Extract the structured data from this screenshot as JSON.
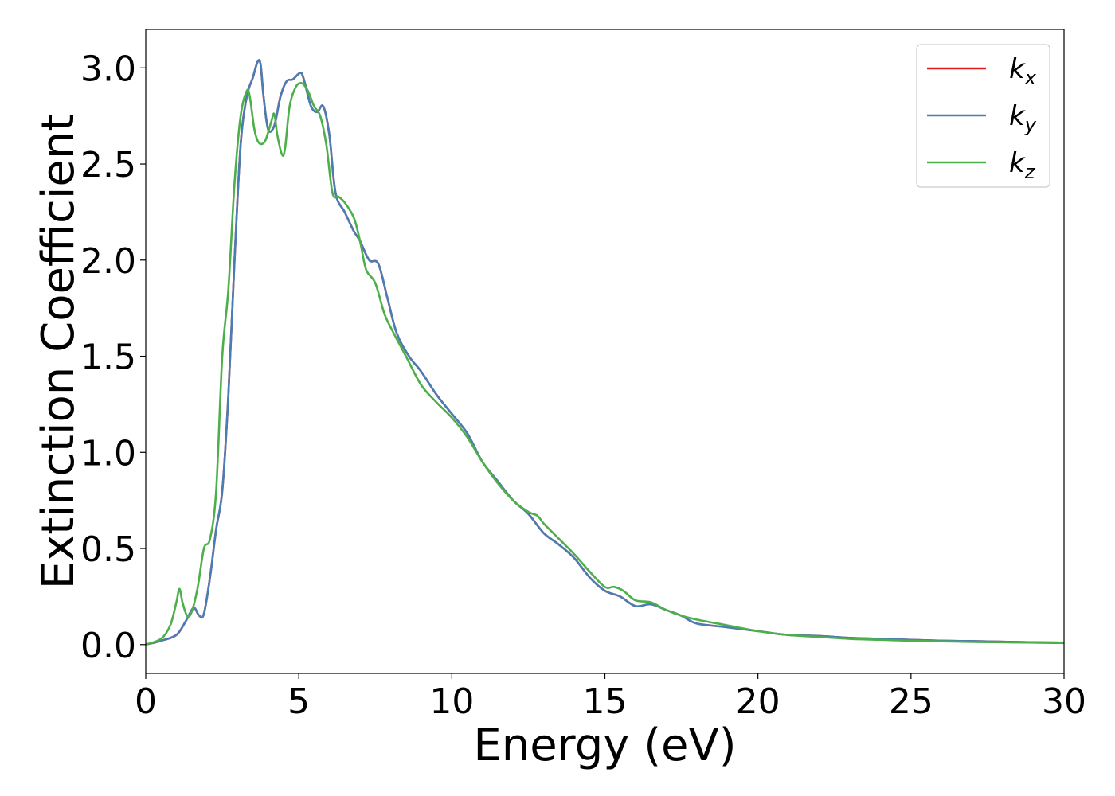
{
  "chart_data": {
    "type": "line",
    "title": "",
    "xlabel": "Energy (eV)",
    "ylabel": "Extinction Coefficient",
    "xlim": [
      0,
      30
    ],
    "ylim": [
      -0.15,
      3.2
    ],
    "xticks": [
      0,
      5,
      10,
      15,
      20,
      25,
      30
    ],
    "xtick_labels": [
      "0",
      "5",
      "10",
      "15",
      "20",
      "25",
      "30"
    ],
    "yticks": [
      0.0,
      0.5,
      1.0,
      1.5,
      2.0,
      2.5,
      3.0
    ],
    "ytick_labels": [
      "0.0",
      "0.5",
      "1.0",
      "1.5",
      "2.0",
      "2.5",
      "3.0"
    ],
    "grid": false,
    "legend_position": "top-right",
    "series": [
      {
        "name": "k_x",
        "label_base": "k",
        "label_sub": "x",
        "color": "#e41a1c",
        "x": [
          0,
          0.5,
          1.0,
          1.3,
          1.5,
          1.6,
          1.75,
          1.9,
          2.1,
          2.3,
          2.5,
          2.7,
          2.9,
          3.1,
          3.3,
          3.5,
          3.65,
          3.75,
          3.85,
          4.0,
          4.2,
          4.4,
          4.6,
          4.8,
          5.0,
          5.1,
          5.2,
          5.4,
          5.6,
          5.8,
          6.0,
          6.2,
          6.5,
          6.8,
          7.0,
          7.3,
          7.6,
          7.9,
          8.2,
          8.6,
          9.0,
          9.5,
          10.0,
          10.5,
          11.0,
          11.5,
          12.0,
          12.5,
          13.0,
          13.5,
          14.0,
          14.5,
          15.0,
          15.5,
          16.0,
          16.5,
          17.0,
          17.5,
          18.0,
          19.0,
          20.0,
          21.0,
          22.0,
          23.0,
          24.0,
          25.0,
          26.0,
          27.0,
          28.0,
          29.0,
          30.0
        ],
        "y": [
          0.0,
          0.02,
          0.05,
          0.12,
          0.18,
          0.19,
          0.15,
          0.16,
          0.35,
          0.6,
          0.8,
          1.3,
          2.0,
          2.6,
          2.85,
          2.95,
          3.03,
          3.02,
          2.85,
          2.68,
          2.7,
          2.85,
          2.93,
          2.94,
          2.97,
          2.97,
          2.92,
          2.8,
          2.77,
          2.8,
          2.65,
          2.35,
          2.25,
          2.15,
          2.1,
          2.0,
          1.98,
          1.8,
          1.62,
          1.5,
          1.42,
          1.3,
          1.2,
          1.1,
          0.95,
          0.85,
          0.75,
          0.68,
          0.58,
          0.52,
          0.45,
          0.35,
          0.28,
          0.25,
          0.2,
          0.21,
          0.18,
          0.15,
          0.11,
          0.09,
          0.07,
          0.05,
          0.045,
          0.035,
          0.03,
          0.025,
          0.02,
          0.018,
          0.015,
          0.012,
          0.01
        ]
      },
      {
        "name": "k_y",
        "label_base": "k",
        "label_sub": "y",
        "color": "#4a7db4",
        "x": [
          0,
          0.5,
          1.0,
          1.3,
          1.5,
          1.6,
          1.75,
          1.9,
          2.1,
          2.3,
          2.5,
          2.7,
          2.9,
          3.1,
          3.3,
          3.5,
          3.65,
          3.75,
          3.85,
          4.0,
          4.2,
          4.4,
          4.6,
          4.8,
          5.0,
          5.1,
          5.2,
          5.4,
          5.6,
          5.8,
          6.0,
          6.2,
          6.5,
          6.8,
          7.0,
          7.3,
          7.6,
          7.9,
          8.2,
          8.6,
          9.0,
          9.5,
          10.0,
          10.5,
          11.0,
          11.5,
          12.0,
          12.5,
          13.0,
          13.5,
          14.0,
          14.5,
          15.0,
          15.5,
          16.0,
          16.5,
          17.0,
          17.5,
          18.0,
          19.0,
          20.0,
          21.0,
          22.0,
          23.0,
          24.0,
          25.0,
          26.0,
          27.0,
          28.0,
          29.0,
          30.0
        ],
        "y": [
          0.0,
          0.02,
          0.05,
          0.12,
          0.18,
          0.19,
          0.15,
          0.16,
          0.35,
          0.6,
          0.8,
          1.3,
          2.0,
          2.6,
          2.85,
          2.95,
          3.03,
          3.02,
          2.85,
          2.68,
          2.7,
          2.85,
          2.93,
          2.94,
          2.97,
          2.97,
          2.92,
          2.8,
          2.77,
          2.8,
          2.65,
          2.35,
          2.25,
          2.15,
          2.1,
          2.0,
          1.98,
          1.8,
          1.62,
          1.5,
          1.42,
          1.3,
          1.2,
          1.1,
          0.95,
          0.85,
          0.75,
          0.68,
          0.58,
          0.52,
          0.45,
          0.35,
          0.28,
          0.25,
          0.2,
          0.21,
          0.18,
          0.15,
          0.11,
          0.09,
          0.07,
          0.05,
          0.045,
          0.035,
          0.03,
          0.025,
          0.02,
          0.018,
          0.015,
          0.012,
          0.01
        ]
      },
      {
        "name": "k_z",
        "label_base": "k",
        "label_sub": "z",
        "color": "#4daf4a",
        "x": [
          0,
          0.5,
          0.8,
          1.0,
          1.1,
          1.2,
          1.35,
          1.5,
          1.7,
          1.9,
          2.1,
          2.3,
          2.5,
          2.7,
          2.9,
          3.1,
          3.3,
          3.4,
          3.55,
          3.7,
          3.9,
          4.1,
          4.2,
          4.3,
          4.45,
          4.55,
          4.7,
          4.9,
          5.1,
          5.3,
          5.5,
          5.7,
          5.9,
          6.1,
          6.3,
          6.5,
          6.8,
          7.0,
          7.2,
          7.5,
          7.8,
          8.1,
          8.5,
          9.0,
          9.5,
          10.0,
          10.5,
          11.0,
          11.5,
          12.0,
          12.5,
          12.8,
          13.0,
          13.5,
          14.0,
          14.5,
          15.0,
          15.3,
          15.6,
          16.0,
          16.5,
          17.0,
          17.5,
          18.0,
          19.0,
          20.0,
          21.0,
          22.0,
          23.0,
          24.0,
          25.0,
          26.0,
          27.0,
          28.0,
          29.0,
          30.0
        ],
        "y": [
          0.0,
          0.03,
          0.1,
          0.22,
          0.29,
          0.22,
          0.15,
          0.17,
          0.3,
          0.5,
          0.55,
          0.8,
          1.5,
          1.85,
          2.4,
          2.75,
          2.88,
          2.85,
          2.68,
          2.61,
          2.62,
          2.72,
          2.76,
          2.65,
          2.55,
          2.58,
          2.8,
          2.9,
          2.92,
          2.88,
          2.8,
          2.75,
          2.6,
          2.35,
          2.33,
          2.3,
          2.22,
          2.1,
          1.95,
          1.88,
          1.72,
          1.62,
          1.5,
          1.35,
          1.26,
          1.18,
          1.08,
          0.95,
          0.84,
          0.75,
          0.69,
          0.67,
          0.63,
          0.55,
          0.47,
          0.38,
          0.3,
          0.3,
          0.28,
          0.23,
          0.22,
          0.18,
          0.15,
          0.13,
          0.1,
          0.07,
          0.05,
          0.04,
          0.03,
          0.025,
          0.02,
          0.017,
          0.014,
          0.012,
          0.01,
          0.008
        ]
      }
    ]
  }
}
